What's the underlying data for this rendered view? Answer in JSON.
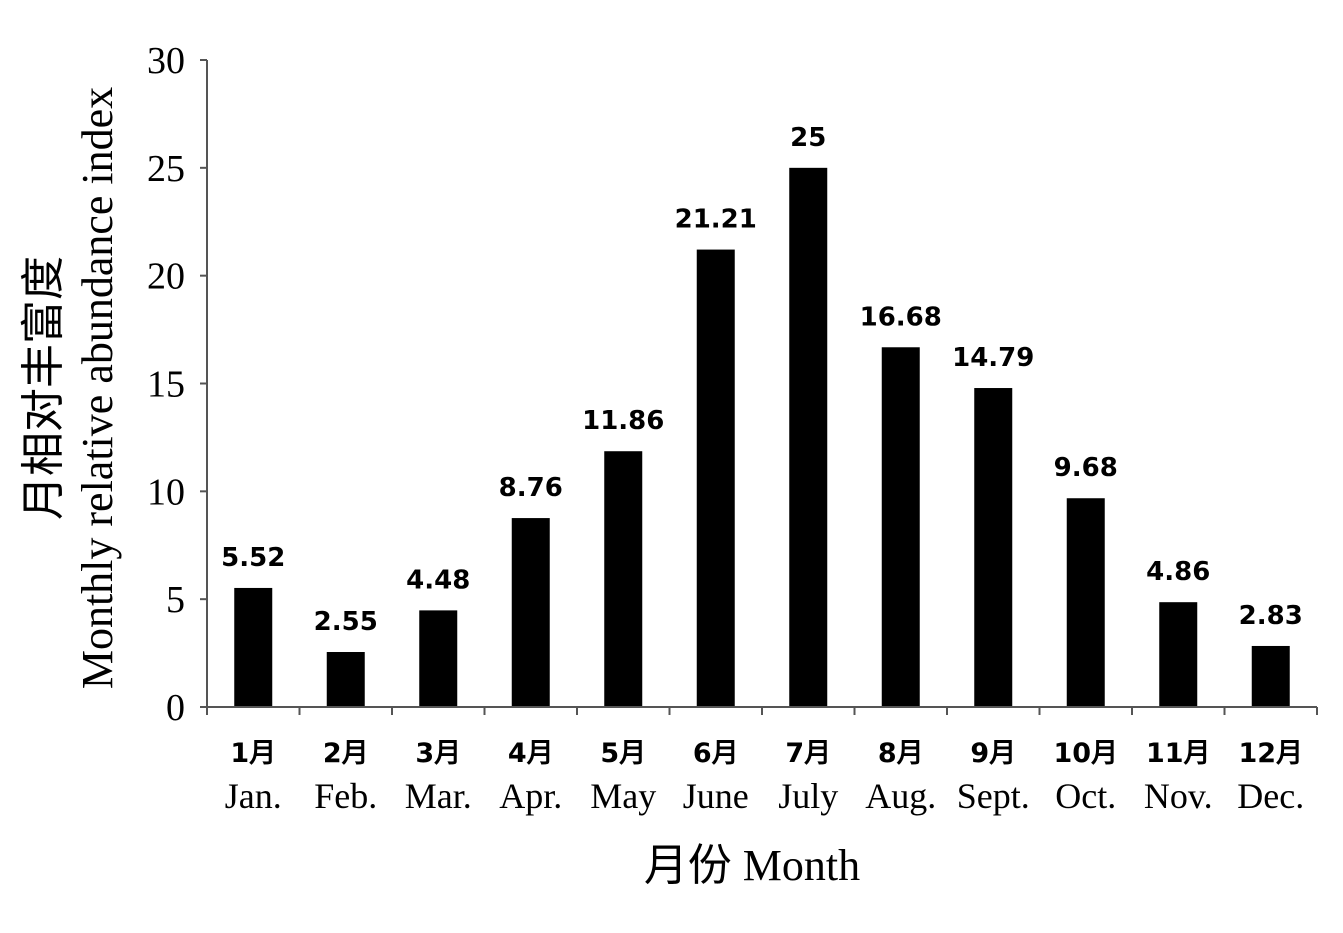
{
  "chart_data": {
    "type": "bar",
    "categories_cn": [
      "1月",
      "2月",
      "3月",
      "4月",
      "5月",
      "6月",
      "7月",
      "8月",
      "9月",
      "10月",
      "11月",
      "12月"
    ],
    "categories_en": [
      "Jan.",
      "Feb.",
      "Mar.",
      "Apr.",
      "May",
      "June",
      "July",
      "Aug.",
      "Sept.",
      "Oct.",
      "Nov.",
      "Dec."
    ],
    "values": [
      5.52,
      2.55,
      4.48,
      8.76,
      11.86,
      21.21,
      25,
      16.68,
      14.79,
      9.68,
      4.86,
      2.83
    ],
    "value_labels": [
      "5.52",
      "2.55",
      "4.48",
      "8.76",
      "11.86",
      "21.21",
      "25",
      "16.68",
      "14.79",
      "9.68",
      "4.86",
      "2.83"
    ],
    "bar_color": "#000000",
    "ylim": [
      0,
      30
    ],
    "yticks": [
      "0",
      "5",
      "10",
      "15",
      "20",
      "25",
      "30"
    ],
    "ylabel_line1": "月相对丰富度",
    "ylabel_line2": "Monthly relative abundance index",
    "xlabel": "月份 Month",
    "grid": false
  }
}
